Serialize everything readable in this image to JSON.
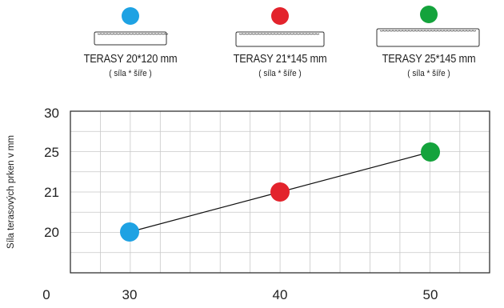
{
  "legend": [
    {
      "name": "TERASY 20*120 mm",
      "note": "( síla * šíře )",
      "color": "#1ea2e3"
    },
    {
      "name": "TERASY 21*145 mm",
      "note": "( síla * šíře )",
      "color": "#e3232c"
    },
    {
      "name": "TERASY 25*145 mm",
      "note": "( síla * šíře )",
      "color": "#14a33c"
    }
  ],
  "chart_data": {
    "type": "scatter",
    "ylabel": "Síla terasových  prken v mm",
    "xlabel": "",
    "x_ticks": [
      "0",
      "30",
      "40",
      "50"
    ],
    "y_ticks": [
      "20",
      "21",
      "25",
      "30"
    ],
    "grid": true,
    "line_color": "#111111",
    "series": [
      {
        "name": "TERASY 20*120 mm",
        "x": 30,
        "y": 20,
        "color": "#1ea2e3"
      },
      {
        "name": "TERASY 21*145 mm",
        "x": 40,
        "y": 21,
        "color": "#e3232c"
      },
      {
        "name": "TERASY 25*145 mm",
        "x": 50,
        "y": 25,
        "color": "#14a33c"
      }
    ]
  }
}
